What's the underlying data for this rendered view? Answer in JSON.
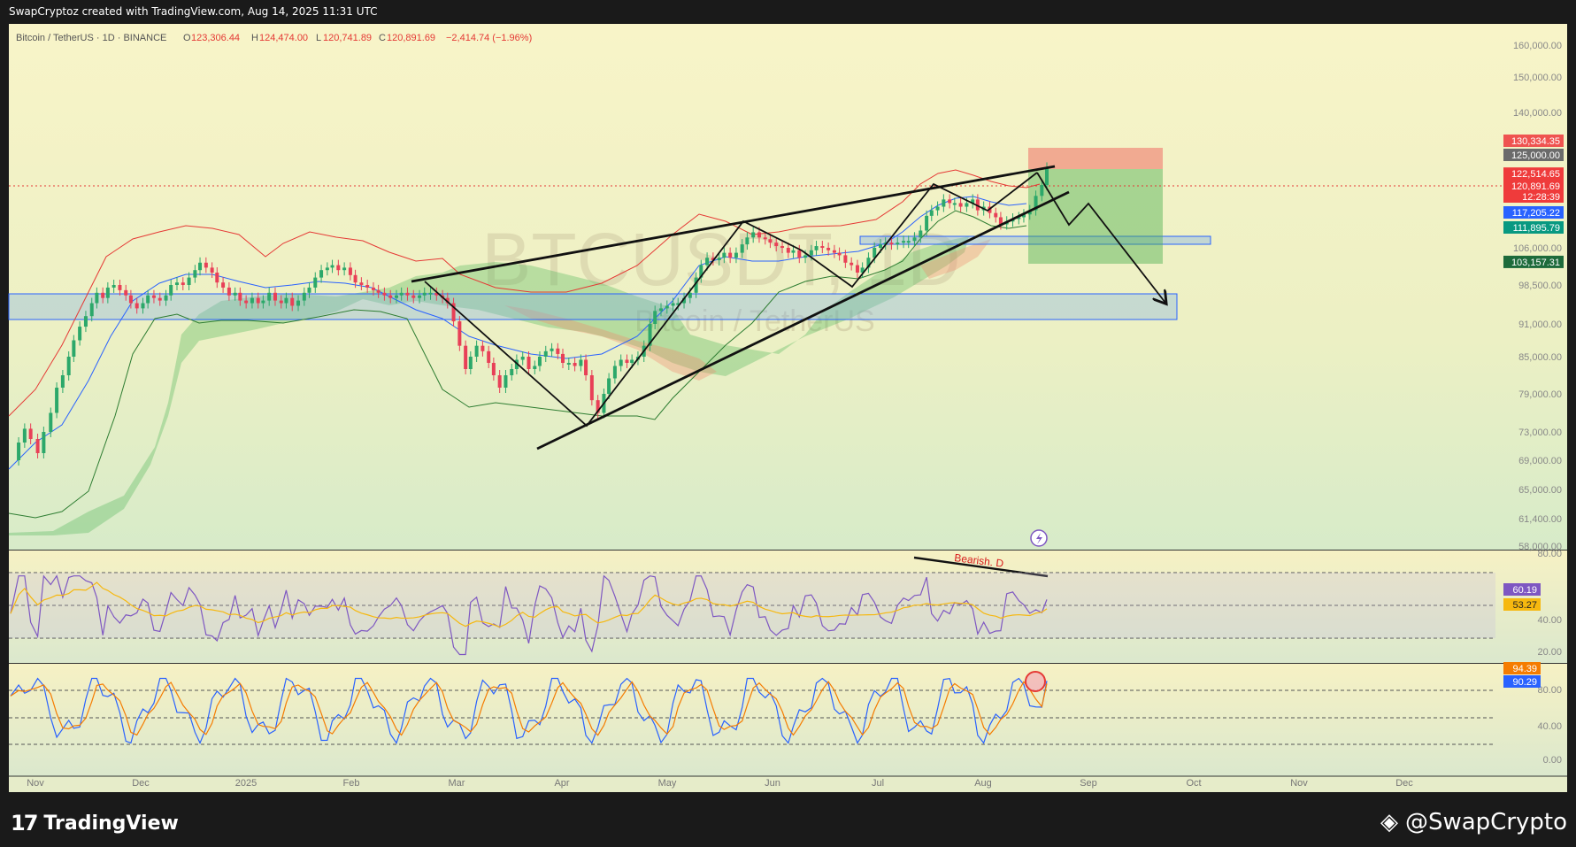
{
  "header": {
    "credit": "SwapCryptoz created with TradingView.com, Aug 14, 2025 11:31 UTC",
    "symbol": "Bitcoin / TetherUS · 1D · BINANCE",
    "o_label": "O",
    "o_value": "123,306.44",
    "h_label": "H",
    "h_value": "124,474.00",
    "l_label": "L",
    "l_value": "120,741.89",
    "c_label": "C",
    "c_value": "120,891.69",
    "change": "−2,414.74 (−1.96%)"
  },
  "watermark": {
    "ticker": "BTCUSDT, 1D",
    "name": "Bitcoin / TetherUS"
  },
  "annotation": {
    "bearish": "Bearish. D"
  },
  "footer": {
    "tradingview": "TradingView",
    "swapcrypto": "@SwapCrypto"
  },
  "colors": {
    "up": "#2ca86a",
    "down": "#e84057",
    "bg": "#f7f3c9",
    "accent_blue": "#2962ff",
    "rsi": "#7e57c2",
    "rsi_ma": "#f6b80f"
  },
  "chart_data": {
    "type": "line",
    "title": "Bitcoin / TetherUS · 1D · BINANCE",
    "x_ticks": [
      "Nov",
      "Dec",
      "2025",
      "Feb",
      "Mar",
      "Apr",
      "May",
      "Jun",
      "Jul",
      "Aug",
      "Sep",
      "Oct",
      "Nov",
      "Dec"
    ],
    "y_ticks": [
      "160,000.00",
      "150,000.00",
      "140,000.00",
      "106,000.00",
      "98,500.00",
      "91,000.00",
      "85,000.00",
      "79,000.00",
      "73,000.00",
      "69,000.00",
      "65,000.00",
      "61,400.00",
      "58,000.00"
    ],
    "price_labels": [
      {
        "text": "130,334.35",
        "color": "#ef5350"
      },
      {
        "text": "125,000.00",
        "color": "#6b6b6b"
      },
      {
        "text": "122,514.65",
        "color": "#ef3b3b"
      },
      {
        "text": "120,891.69",
        "color": "#ef3b3b"
      },
      {
        "text": "12:28:39",
        "color": "#ef3b3b"
      },
      {
        "text": "117,205.22",
        "color": "#2962ff"
      },
      {
        "text": "111,895.79",
        "color": "#089981"
      },
      {
        "text": "103,157.31",
        "color": "#1d6b3b"
      }
    ],
    "series": [
      {
        "name": "BTCUSDT",
        "points": [
          [
            0,
            69000
          ],
          [
            8,
            71500
          ],
          [
            14,
            73500
          ],
          [
            20,
            72000
          ],
          [
            27,
            70000
          ],
          [
            33,
            73000
          ],
          [
            40,
            76000
          ],
          [
            46,
            80000
          ],
          [
            52,
            82000
          ],
          [
            58,
            85000
          ],
          [
            63,
            88000
          ],
          [
            69,
            90500
          ],
          [
            75,
            92500
          ],
          [
            81,
            95000
          ],
          [
            86,
            97000
          ],
          [
            92,
            96000
          ],
          [
            97,
            98000
          ],
          [
            103,
            98500
          ],
          [
            109,
            97500
          ],
          [
            115,
            96500
          ],
          [
            120,
            95000
          ],
          [
            126,
            94000
          ],
          [
            132,
            95000
          ],
          [
            137,
            96500
          ],
          [
            143,
            96000
          ],
          [
            149,
            95500
          ],
          [
            155,
            96500
          ],
          [
            160,
            98500
          ],
          [
            166,
            99000
          ],
          [
            172,
            98500
          ],
          [
            178,
            100000
          ],
          [
            184,
            101500
          ],
          [
            189,
            103000
          ],
          [
            195,
            102000
          ],
          [
            201,
            101000
          ],
          [
            206,
            99000
          ],
          [
            212,
            98000
          ],
          [
            218,
            96500
          ],
          [
            224,
            97000
          ],
          [
            229,
            95500
          ],
          [
            235,
            95000
          ],
          [
            241,
            96000
          ],
          [
            247,
            95000
          ],
          [
            252,
            95500
          ],
          [
            258,
            97000
          ],
          [
            264,
            95500
          ],
          [
            270,
            95000
          ],
          [
            275,
            96000
          ],
          [
            281,
            94500
          ],
          [
            287,
            95500
          ],
          [
            293,
            97000
          ],
          [
            298,
            98000
          ],
          [
            304,
            100000
          ],
          [
            310,
            101500
          ],
          [
            316,
            102000
          ],
          [
            321,
            102500
          ],
          [
            327,
            101500
          ],
          [
            333,
            102000
          ],
          [
            339,
            100500
          ],
          [
            344,
            99000
          ],
          [
            350,
            98500
          ],
          [
            356,
            98000
          ],
          [
            362,
            97500
          ],
          [
            367,
            97000
          ],
          [
            373,
            96500
          ],
          [
            379,
            96000
          ],
          [
            385,
            96500
          ],
          [
            390,
            97000
          ],
          [
            396,
            96500
          ],
          [
            402,
            96000
          ],
          [
            408,
            96500
          ],
          [
            413,
            97000
          ],
          [
            419,
            97000
          ],
          [
            425,
            96500
          ],
          [
            431,
            96000
          ],
          [
            436,
            95000
          ],
          [
            442,
            91500
          ],
          [
            448,
            87000
          ],
          [
            454,
            83000
          ],
          [
            459,
            85000
          ],
          [
            465,
            87000
          ],
          [
            471,
            86000
          ],
          [
            477,
            84000
          ],
          [
            482,
            82000
          ],
          [
            488,
            80000
          ],
          [
            494,
            82000
          ],
          [
            500,
            83000
          ],
          [
            505,
            84500
          ],
          [
            511,
            85000
          ],
          [
            517,
            83000
          ],
          [
            523,
            83500
          ],
          [
            528,
            85000
          ],
          [
            534,
            86000
          ],
          [
            540,
            86500
          ],
          [
            546,
            85500
          ],
          [
            551,
            84000
          ],
          [
            557,
            84000
          ],
          [
            563,
            83500
          ],
          [
            569,
            84500
          ],
          [
            574,
            82000
          ],
          [
            580,
            78000
          ],
          [
            586,
            76000
          ],
          [
            592,
            79000
          ],
          [
            597,
            81500
          ],
          [
            603,
            83500
          ],
          [
            609,
            84500
          ],
          [
            615,
            84000
          ],
          [
            620,
            84500
          ],
          [
            626,
            85000
          ],
          [
            632,
            87000
          ],
          [
            638,
            91000
          ],
          [
            643,
            93500
          ],
          [
            649,
            94000
          ],
          [
            655,
            94500
          ],
          [
            661,
            95000
          ],
          [
            666,
            95000
          ],
          [
            672,
            96000
          ],
          [
            678,
            97000
          ],
          [
            684,
            100000
          ],
          [
            689,
            102500
          ],
          [
            695,
            104000
          ],
          [
            701,
            103500
          ],
          [
            707,
            104000
          ],
          [
            712,
            105000
          ],
          [
            718,
            104000
          ],
          [
            724,
            105000
          ],
          [
            730,
            107000
          ],
          [
            735,
            109000
          ],
          [
            741,
            110500
          ],
          [
            747,
            109000
          ],
          [
            753,
            108500
          ],
          [
            758,
            107500
          ],
          [
            764,
            106500
          ],
          [
            770,
            106000
          ],
          [
            776,
            105000
          ],
          [
            781,
            105500
          ],
          [
            787,
            104000
          ],
          [
            793,
            104500
          ],
          [
            799,
            105500
          ],
          [
            804,
            106500
          ],
          [
            810,
            106000
          ],
          [
            816,
            105500
          ],
          [
            822,
            105000
          ],
          [
            827,
            104500
          ],
          [
            833,
            103000
          ],
          [
            839,
            102500
          ],
          [
            845,
            101000
          ],
          [
            850,
            102000
          ],
          [
            856,
            104000
          ],
          [
            862,
            106000
          ],
          [
            868,
            107000
          ],
          [
            873,
            107500
          ],
          [
            879,
            107000
          ],
          [
            885,
            107500
          ],
          [
            891,
            108000
          ],
          [
            896,
            108000
          ],
          [
            902,
            109000
          ],
          [
            908,
            111000
          ],
          [
            914,
            116000
          ],
          [
            919,
            117500
          ],
          [
            925,
            118000
          ],
          [
            931,
            119000
          ],
          [
            937,
            118500
          ],
          [
            942,
            118500
          ],
          [
            948,
            118000
          ],
          [
            954,
            118500
          ],
          [
            960,
            119000
          ],
          [
            965,
            117500
          ],
          [
            971,
            118000
          ],
          [
            977,
            117000
          ],
          [
            983,
            115500
          ],
          [
            988,
            113000
          ],
          [
            994,
            114000
          ],
          [
            1000,
            115000
          ],
          [
            1006,
            115500
          ],
          [
            1011,
            116500
          ],
          [
            1017,
            117500
          ],
          [
            1023,
            119500
          ],
          [
            1029,
            121000
          ],
          [
            1034,
            123306
          ]
        ]
      }
    ],
    "rsi": {
      "labels": [
        "80.00",
        "40.00",
        "20.00"
      ],
      "current": "60.19",
      "ma": "53.27"
    },
    "stoch": {
      "labels": [
        "80.00",
        "40.00",
        "0.00"
      ],
      "k": "94.39",
      "d": "90.29"
    }
  }
}
